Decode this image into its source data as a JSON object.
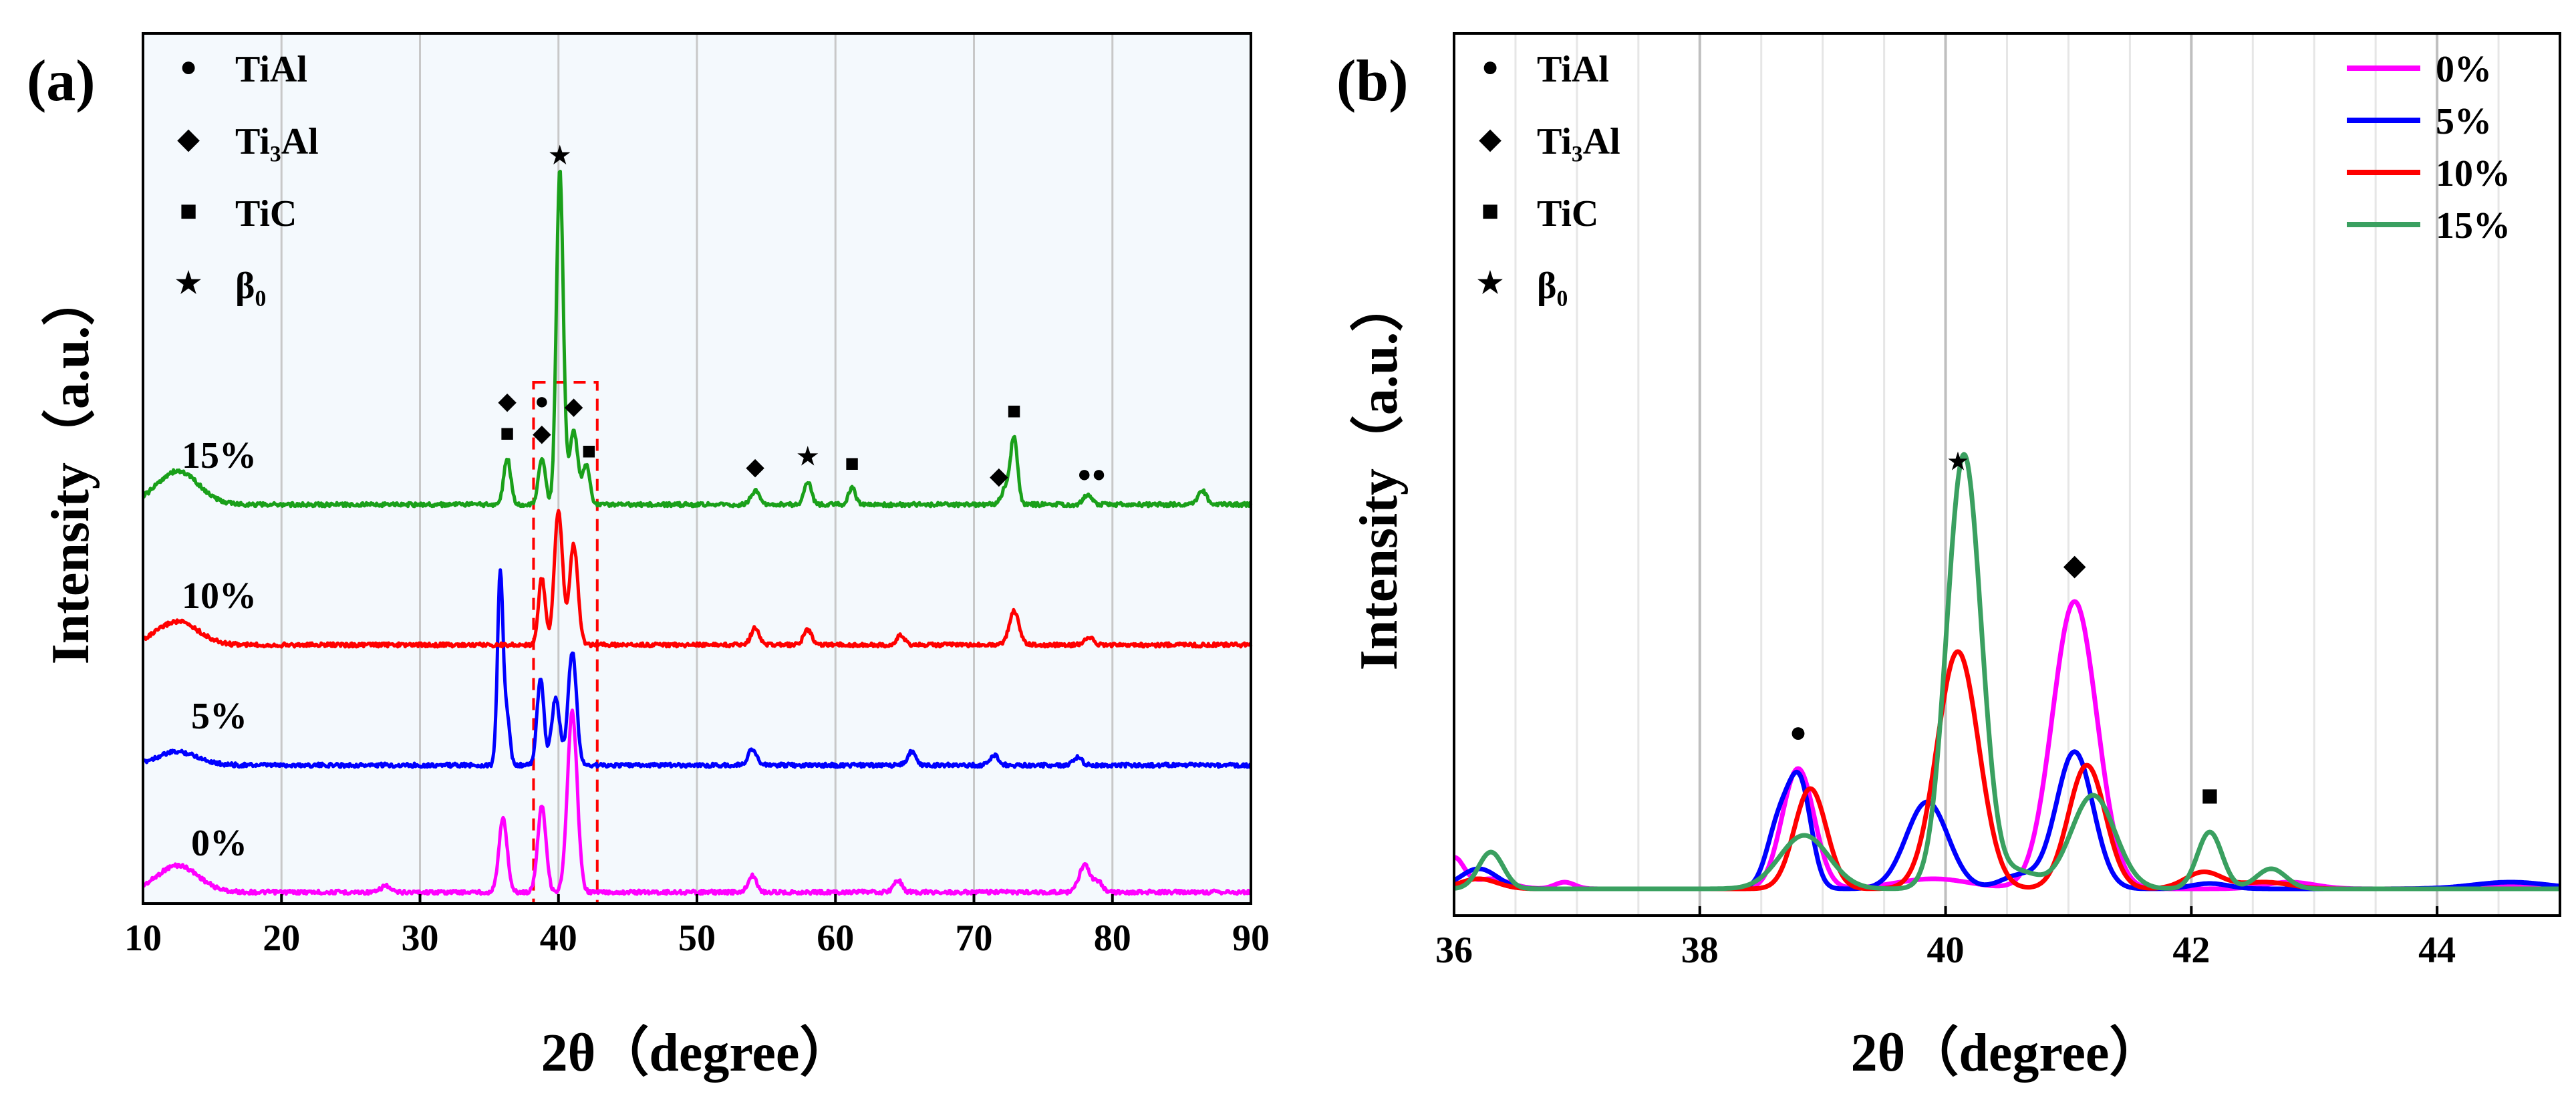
{
  "chart_data": [
    {
      "panel": "(a)",
      "type": "line",
      "xlabel": "2θ（degree）",
      "ylabel": "Intensity（a.u.）",
      "xlim": [
        10,
        90
      ],
      "xticks": [
        "10",
        "20",
        "30",
        "40",
        "50",
        "60",
        "70",
        "80",
        "90"
      ],
      "phase_legend": [
        {
          "symbol": "circle",
          "glyph": "●",
          "label": "TiAl"
        },
        {
          "symbol": "diamond",
          "glyph": "◆",
          "label": "Ti₃Al"
        },
        {
          "symbol": "square",
          "glyph": "■",
          "label": "TiC"
        },
        {
          "symbol": "star",
          "glyph": "★",
          "label": "β₀"
        }
      ],
      "highlight_box_2theta": [
        38.2,
        42.8
      ],
      "series": [
        {
          "name": "0%",
          "color": "#ff00ff",
          "offset": 0,
          "peaks": [
            [
              12.5,
              40,
              1.5
            ],
            [
              27.5,
              10,
              0.3
            ],
            [
              36,
              110,
              0.3
            ],
            [
              38.8,
              130,
              0.3
            ],
            [
              41,
              270,
              0.35
            ],
            [
              54,
              25,
              0.3
            ],
            [
              64.5,
              18,
              0.3
            ],
            [
              78,
              40,
              0.4
            ],
            [
              79,
              15,
              0.3
            ]
          ]
        },
        {
          "name": "5%",
          "color": "#0000ff",
          "offset": 190,
          "peaks": [
            [
              12.5,
              20,
              1.5
            ],
            [
              35.8,
              290,
              0.2
            ],
            [
              36.3,
              70,
              0.2
            ],
            [
              38.7,
              130,
              0.25
            ],
            [
              39.8,
              100,
              0.3
            ],
            [
              41,
              170,
              0.3
            ],
            [
              54,
              25,
              0.3
            ],
            [
              65.5,
              20,
              0.3
            ],
            [
              71.5,
              15,
              0.3
            ],
            [
              77.5,
              12,
              0.3
            ]
          ]
        },
        {
          "name": "10%",
          "color": "#ff0000",
          "offset": 370,
          "peaks": [
            [
              12.5,
              35,
              1.5
            ],
            [
              38.8,
              100,
              0.25
            ],
            [
              40,
              200,
              0.3
            ],
            [
              41.1,
              150,
              0.3
            ],
            [
              54.2,
              25,
              0.3
            ],
            [
              58,
              22,
              0.3
            ],
            [
              64.7,
              14,
              0.3
            ],
            [
              72.9,
              50,
              0.35
            ],
            [
              78.3,
              12,
              0.3
            ]
          ]
        },
        {
          "name": "15%",
          "color": "#1aa01a",
          "offset": 580,
          "peaks": [
            [
              12.5,
              50,
              1.5
            ],
            [
              36.3,
              70,
              0.25
            ],
            [
              38.8,
              70,
              0.25
            ],
            [
              40.1,
              500,
              0.25
            ],
            [
              41.1,
              110,
              0.3
            ],
            [
              42,
              60,
              0.25
            ],
            [
              54.2,
              20,
              0.3
            ],
            [
              58,
              35,
              0.25
            ],
            [
              61.2,
              25,
              0.25
            ],
            [
              72.3,
              25,
              0.3
            ],
            [
              72.9,
              100,
              0.25
            ],
            [
              78.2,
              15,
              0.3
            ],
            [
              86.5,
              20,
              0.3
            ]
          ]
        }
      ],
      "peak_markers": [
        {
          "x": 40.1,
          "glyph": "★"
        },
        {
          "x": 36.3,
          "glyph": "■"
        },
        {
          "x": 36.3,
          "glyph": "◆"
        },
        {
          "x": 38.8,
          "glyph": "◆"
        },
        {
          "x": 38.8,
          "glyph": "●"
        },
        {
          "x": 41.1,
          "glyph": "◆"
        },
        {
          "x": 42.2,
          "glyph": "■"
        },
        {
          "x": 54.2,
          "glyph": "◆"
        },
        {
          "x": 58,
          "glyph": "★"
        },
        {
          "x": 61.2,
          "glyph": "■"
        },
        {
          "x": 71.8,
          "glyph": "◆"
        },
        {
          "x": 72.9,
          "glyph": "■"
        },
        {
          "x": 78.5,
          "glyph": "●●"
        }
      ]
    },
    {
      "panel": "(b)",
      "type": "line",
      "xlabel": "2θ（degree）",
      "ylabel": "Intensity（a.u.）",
      "xlim": [
        36,
        45
      ],
      "xticks": [
        "36",
        "38",
        "40",
        "42",
        "44"
      ],
      "phase_legend": [
        {
          "symbol": "circle",
          "glyph": "●",
          "label": "TiAl"
        },
        {
          "symbol": "diamond",
          "glyph": "◆",
          "label": "Ti₃Al"
        },
        {
          "symbol": "square",
          "glyph": "■",
          "label": "TiC"
        },
        {
          "symbol": "star",
          "glyph": "★",
          "label": "β₀"
        }
      ],
      "legend": [
        "0%",
        "5%",
        "10%",
        "15%"
      ],
      "series": [
        {
          "name": "0%",
          "color": "#ff00ff",
          "peaks": [
            [
              36.0,
              45,
              0.08
            ],
            [
              36.3,
              15,
              0.15
            ],
            [
              36.9,
              10,
              0.08
            ],
            [
              38.8,
              180,
              0.13
            ],
            [
              39.9,
              15,
              0.3
            ],
            [
              41.05,
              430,
              0.18
            ],
            [
              42.8,
              10,
              0.2
            ],
            [
              44.5,
              5,
              0.3
            ]
          ]
        },
        {
          "name": "5%",
          "color": "#0000ff",
          "peaks": [
            [
              36.2,
              30,
              0.15
            ],
            [
              38.65,
              100,
              0.1
            ],
            [
              38.82,
              145,
              0.09
            ],
            [
              39.85,
              130,
              0.17
            ],
            [
              40.6,
              20,
              0.15
            ],
            [
              41.05,
              205,
              0.15
            ],
            [
              42.15,
              8,
              0.15
            ],
            [
              44.6,
              10,
              0.3
            ]
          ]
        },
        {
          "name": "10%",
          "color": "#ff0000",
          "peaks": [
            [
              36.2,
              15,
              0.15
            ],
            [
              38.9,
              150,
              0.13
            ],
            [
              40.1,
              355,
              0.17
            ],
            [
              41.15,
              185,
              0.15
            ],
            [
              42.1,
              25,
              0.15
            ],
            [
              42.6,
              10,
              0.2
            ]
          ]
        },
        {
          "name": "15%",
          "color": "#3aa060",
          "peaks": [
            [
              36.3,
              55,
              0.1
            ],
            [
              38.85,
              80,
              0.2
            ],
            [
              40.15,
              650,
              0.14
            ],
            [
              40.6,
              25,
              0.15
            ],
            [
              41.2,
              140,
              0.18
            ],
            [
              42.15,
              85,
              0.1
            ],
            [
              42.65,
              30,
              0.12
            ]
          ]
        }
      ],
      "peak_markers": [
        {
          "x": 38.8,
          "glyph": "●"
        },
        {
          "x": 40.1,
          "glyph": "★"
        },
        {
          "x": 41.05,
          "glyph": "◆"
        },
        {
          "x": 42.15,
          "glyph": "■"
        }
      ]
    }
  ]
}
